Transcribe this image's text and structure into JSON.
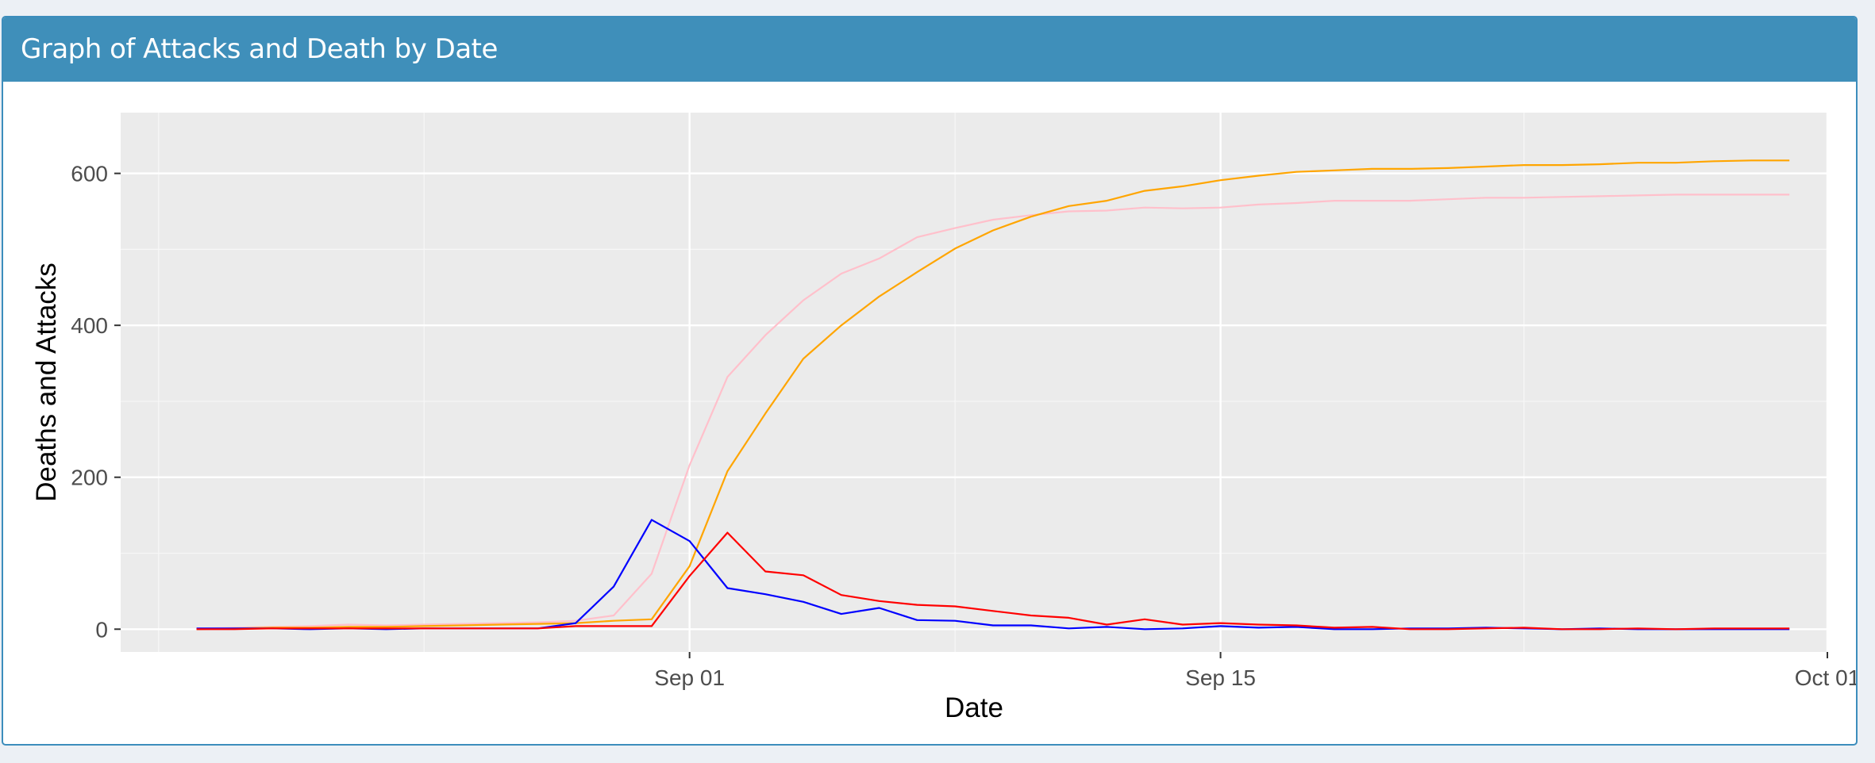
{
  "box": {
    "title": "Graph of Attacks and Death by Date"
  },
  "chart_data": {
    "type": "line",
    "title": "",
    "xlabel": "Date",
    "ylabel": "Deaths and Attacks",
    "xlim": [
      "1854-08-17",
      "1854-10-01"
    ],
    "ylim": [
      -30,
      680
    ],
    "x_ticks": [
      {
        "date": "1854-09-01",
        "label": "Sep 01"
      },
      {
        "date": "1854-09-15",
        "label": "Sep 15"
      },
      {
        "date": "1854-10-01",
        "label": "Oct 01"
      }
    ],
    "x_minor_ticks": [
      "1854-08-18",
      "1854-08-25",
      "1854-09-08",
      "1854-09-23"
    ],
    "y_ticks": [
      0,
      200,
      400,
      600
    ],
    "y_minor_ticks": [
      100,
      300,
      500
    ],
    "grid": true,
    "legend": "none",
    "dates": [
      "1854-08-19",
      "1854-08-20",
      "1854-08-21",
      "1854-08-22",
      "1854-08-23",
      "1854-08-24",
      "1854-08-25",
      "1854-08-26",
      "1854-08-27",
      "1854-08-28",
      "1854-08-29",
      "1854-08-30",
      "1854-08-31",
      "1854-09-01",
      "1854-09-02",
      "1854-09-03",
      "1854-09-04",
      "1854-09-05",
      "1854-09-06",
      "1854-09-07",
      "1854-09-08",
      "1854-09-09",
      "1854-09-10",
      "1854-09-11",
      "1854-09-12",
      "1854-09-13",
      "1854-09-14",
      "1854-09-15",
      "1854-09-16",
      "1854-09-17",
      "1854-09-18",
      "1854-09-19",
      "1854-09-20",
      "1854-09-21",
      "1854-09-22",
      "1854-09-23",
      "1854-09-24",
      "1854-09-25",
      "1854-09-26",
      "1854-09-27",
      "1854-09-28",
      "1854-09-29",
      "1854-09-30"
    ],
    "series": [
      {
        "color": "#ffc0cb",
        "values": [
          1,
          2,
          3,
          4,
          6,
          5,
          6,
          7,
          8,
          9,
          11,
          18,
          73,
          216,
          332,
          387,
          433,
          468,
          488,
          516,
          528,
          539,
          545,
          550,
          551,
          555,
          554,
          555,
          559,
          561,
          564,
          564,
          564,
          566,
          568,
          568,
          569,
          570,
          571,
          572,
          572,
          572,
          572
        ]
      },
      {
        "color": "#ffa500",
        "values": [
          0,
          1,
          2,
          2,
          3,
          3,
          4,
          5,
          6,
          7,
          8,
          11,
          13,
          83,
          208,
          284,
          356,
          400,
          438,
          470,
          501,
          525,
          543,
          557,
          564,
          577,
          583,
          591,
          597,
          602,
          604,
          606,
          606,
          607,
          609,
          611,
          611,
          612,
          614,
          614,
          616,
          617,
          617
        ]
      },
      {
        "color": "#0000ff",
        "values": [
          1,
          1,
          1,
          0,
          1,
          0,
          1,
          1,
          1,
          1,
          8,
          56,
          144,
          116,
          54,
          46,
          36,
          20,
          28,
          12,
          11,
          5,
          5,
          1,
          3,
          0,
          1,
          4,
          2,
          3,
          0,
          0,
          1,
          1,
          2,
          1,
          0,
          1,
          0,
          0,
          0,
          0,
          0
        ]
      },
      {
        "color": "#ff0000",
        "values": [
          0,
          0,
          1,
          1,
          1,
          1,
          1,
          1,
          1,
          1,
          4,
          4,
          4,
          70,
          127,
          76,
          71,
          45,
          37,
          32,
          30,
          24,
          18,
          15,
          6,
          13,
          6,
          8,
          6,
          5,
          2,
          3,
          0,
          0,
          1,
          2,
          0,
          0,
          1,
          0,
          1,
          1,
          1
        ]
      }
    ]
  }
}
